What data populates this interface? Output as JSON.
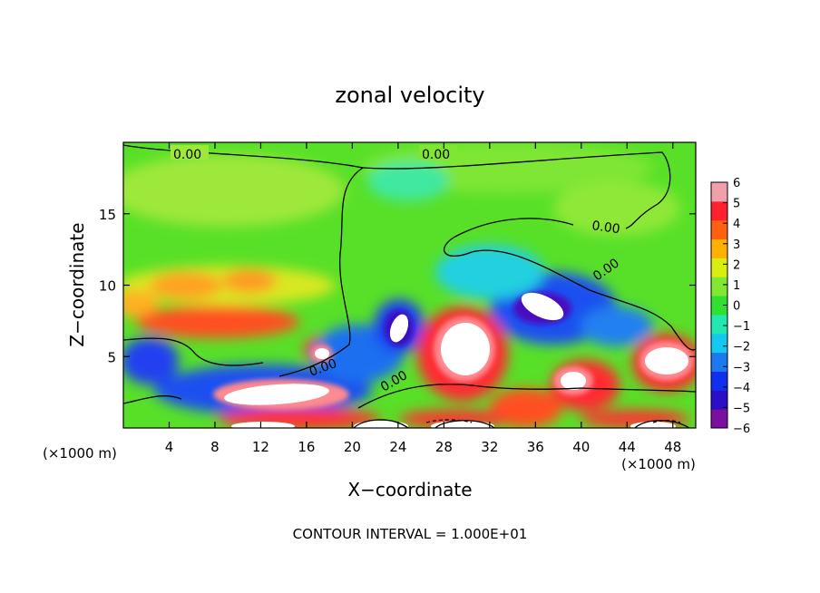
{
  "chart_data": {
    "type": "heatmap",
    "title": "zonal velocity",
    "xlabel": "X−coordinate",
    "ylabel": "Z−coordinate",
    "x_unit_left": "(×1000 m)",
    "x_unit_right": "(×1000 m)",
    "xlim": [
      0,
      50
    ],
    "ylim": [
      0,
      20
    ],
    "x_ticks": [
      4,
      8,
      12,
      16,
      20,
      24,
      28,
      32,
      36,
      40,
      44,
      48
    ],
    "y_ticks": [
      5,
      10,
      15
    ],
    "colorbar": {
      "ticks": [
        "6",
        "5",
        "4",
        "3",
        "2",
        "1",
        "0",
        "−1",
        "−2",
        "−3",
        "−4",
        "−5",
        "−6"
      ],
      "range": [
        -6,
        6
      ],
      "colors": [
        "#7a0fa0",
        "#2a0ec8",
        "#1030f0",
        "#1e78f0",
        "#14c8f0",
        "#20e8b0",
        "#30e030",
        "#80e830",
        "#d8ee10",
        "#ffb000",
        "#ff6010",
        "#ff2030",
        "#f0a0a8"
      ]
    },
    "contour_labels": [
      "0.00",
      "0.00",
      "0.00",
      "0.00",
      "0.00",
      "0.00"
    ],
    "footer": "CONTOUR INTERVAL =  1.000E+01"
  }
}
